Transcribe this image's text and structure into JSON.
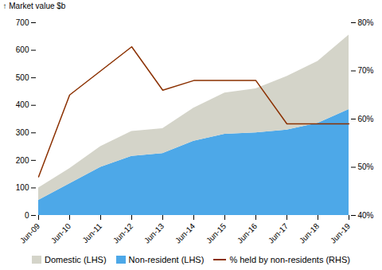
{
  "chart_data": {
    "type": "area",
    "stacked": true,
    "ylabel": "Market value $b",
    "categories": [
      "Jun-09",
      "Jun-10",
      "Jun-11",
      "Jun-12",
      "Jun-13",
      "Jun-14",
      "Jun-15",
      "Jun-16",
      "Jun-17",
      "Jun-18",
      "Jun-19"
    ],
    "series": [
      {
        "name": "Domestic (LHS)",
        "color": "#d4d4c9",
        "values": [
          45,
          55,
          75,
          90,
          90,
          120,
          150,
          160,
          195,
          225,
          270
        ]
      },
      {
        "name": "Non-resident (LHS)",
        "color": "#4da8e8",
        "values": [
          55,
          115,
          175,
          215,
          225,
          270,
          295,
          300,
          310,
          335,
          385
        ]
      },
      {
        "name": "% held by non-residents (RHS)",
        "type": "line",
        "axis": "y2",
        "color": "#8b3000",
        "values": [
          48,
          65,
          70,
          75,
          66,
          68,
          68,
          68,
          59,
          59,
          59
        ]
      }
    ],
    "ylim": [
      0,
      700
    ],
    "yticks": [
      0,
      100,
      200,
      300,
      400,
      500,
      600,
      700
    ],
    "y2lim": [
      40,
      80
    ],
    "y2ticks": [
      {
        "value": 40,
        "label": "40%"
      },
      {
        "value": 50,
        "label": "50%"
      },
      {
        "value": 60,
        "label": "60%"
      },
      {
        "value": 70,
        "label": "70%"
      },
      {
        "value": 80,
        "label": "80%"
      }
    ],
    "legend": "bottom"
  }
}
